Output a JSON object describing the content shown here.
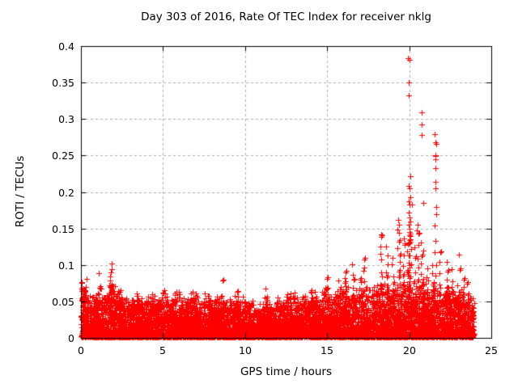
{
  "chart_data": {
    "type": "scatter",
    "title": "Day 303 of 2016, Rate Of TEC Index for receiver nklg",
    "xlabel": "GPS time / hours",
    "ylabel": "ROTI / TECUs",
    "xlim": [
      0,
      25
    ],
    "ylim": [
      0,
      0.4
    ],
    "xticks": [
      0,
      5,
      10,
      15,
      20,
      25
    ],
    "yticks": [
      0,
      0.05,
      0.1,
      0.15,
      0.2,
      0.25,
      0.3,
      0.35,
      0.4
    ],
    "xtick_labels": [
      "0",
      "5",
      "10",
      "15",
      "20",
      "25"
    ],
    "ytick_labels": [
      "0",
      "0.05",
      "0.1",
      "0.15",
      "0.2",
      "0.25",
      "0.3",
      "0.35",
      "0.4"
    ],
    "grid": true,
    "legend": "none",
    "marker": {
      "symbol": "+",
      "size": 7,
      "color": "#ff0000"
    },
    "colors": {
      "marker": "#ff0000",
      "grid": "#b0b0b0",
      "axis": "#000000",
      "background": "#ffffff",
      "text": "#000000"
    },
    "series_name": "ROTI",
    "baseline": {
      "comment": "dense noisy band of + markers, ~0.002-0.06 TECU, 0-24h",
      "seed": 303,
      "count": 9000,
      "x_range": [
        0.02,
        23.95
      ],
      "y_min": 0.0015,
      "exponent": 2.3,
      "envelope": [
        [
          0,
          0.068
        ],
        [
          0.3,
          0.072
        ],
        [
          0.6,
          0.052
        ],
        [
          0.9,
          0.058
        ],
        [
          1.2,
          0.062
        ],
        [
          1.5,
          0.05
        ],
        [
          1.85,
          0.075
        ],
        [
          2.2,
          0.058
        ],
        [
          2.6,
          0.048
        ],
        [
          3.0,
          0.052
        ],
        [
          3.4,
          0.056
        ],
        [
          3.8,
          0.047
        ],
        [
          4.3,
          0.057
        ],
        [
          4.7,
          0.05
        ],
        [
          5.0,
          0.06
        ],
        [
          5.4,
          0.053
        ],
        [
          5.9,
          0.065
        ],
        [
          6.3,
          0.05
        ],
        [
          6.9,
          0.062
        ],
        [
          7.3,
          0.048
        ],
        [
          7.6,
          0.058
        ],
        [
          8.0,
          0.048
        ],
        [
          8.4,
          0.054
        ],
        [
          8.9,
          0.046
        ],
        [
          9.3,
          0.053
        ],
        [
          9.7,
          0.058
        ],
        [
          10.1,
          0.046
        ],
        [
          10.5,
          0.05
        ],
        [
          10.9,
          0.042
        ],
        [
          11.3,
          0.052
        ],
        [
          11.7,
          0.04
        ],
        [
          12.1,
          0.05
        ],
        [
          12.5,
          0.056
        ],
        [
          12.9,
          0.058
        ],
        [
          13.3,
          0.048
        ],
        [
          13.7,
          0.053
        ],
        [
          14.1,
          0.06
        ],
        [
          14.5,
          0.05
        ],
        [
          14.9,
          0.062
        ],
        [
          15.3,
          0.052
        ],
        [
          15.7,
          0.06
        ],
        [
          16.1,
          0.065
        ],
        [
          16.5,
          0.06
        ],
        [
          17.0,
          0.062
        ],
        [
          17.5,
          0.058
        ],
        [
          18.0,
          0.065
        ],
        [
          18.5,
          0.068
        ],
        [
          19.0,
          0.062
        ],
        [
          19.5,
          0.068
        ],
        [
          20.0,
          0.075
        ],
        [
          20.4,
          0.068
        ],
        [
          20.8,
          0.072
        ],
        [
          21.2,
          0.062
        ],
        [
          21.6,
          0.068
        ],
        [
          22.0,
          0.06
        ],
        [
          22.4,
          0.065
        ],
        [
          22.8,
          0.058
        ],
        [
          23.2,
          0.062
        ],
        [
          23.6,
          0.055
        ],
        [
          23.95,
          0.05
        ]
      ]
    },
    "spike_columns": [
      [
        0.12,
        0.075,
        3
      ],
      [
        0.33,
        0.083,
        2
      ],
      [
        1.13,
        0.091,
        3
      ],
      [
        1.85,
        0.099,
        10
      ],
      [
        2.3,
        0.065,
        3
      ],
      [
        8.67,
        0.077,
        2
      ],
      [
        11.25,
        0.066,
        3
      ],
      [
        14.2,
        0.06,
        2
      ],
      [
        15.0,
        0.079,
        3
      ],
      [
        15.7,
        0.081,
        3
      ],
      [
        16.1,
        0.092,
        6
      ],
      [
        16.55,
        0.1,
        6
      ],
      [
        17.0,
        0.082,
        5
      ],
      [
        17.3,
        0.11,
        7
      ],
      [
        17.8,
        0.068,
        7
      ],
      [
        18.3,
        0.138,
        9
      ],
      [
        18.65,
        0.126,
        8
      ],
      [
        19.0,
        0.11,
        6
      ],
      [
        19.35,
        0.145,
        10
      ],
      [
        19.65,
        0.128,
        7
      ],
      [
        19.95,
        0.14,
        14
      ],
      [
        20.05,
        0.135,
        12
      ],
      [
        20.3,
        0.122,
        6
      ],
      [
        20.55,
        0.14,
        7
      ],
      [
        20.78,
        0.13,
        9
      ],
      [
        21.1,
        0.096,
        6
      ],
      [
        21.4,
        0.1,
        5
      ],
      [
        21.6,
        0.17,
        8
      ],
      [
        21.9,
        0.115,
        6
      ],
      [
        22.3,
        0.105,
        6
      ],
      [
        22.6,
        0.092,
        4
      ],
      [
        23.0,
        0.112,
        4
      ],
      [
        23.35,
        0.082,
        4
      ],
      [
        23.6,
        0.075,
        3
      ]
    ],
    "outliers": [
      [
        19.93,
        0.383
      ],
      [
        20.03,
        0.381
      ],
      [
        19.98,
        0.35
      ],
      [
        19.97,
        0.332
      ],
      [
        20.74,
        0.309
      ],
      [
        20.76,
        0.293
      ],
      [
        20.75,
        0.278
      ],
      [
        21.57,
        0.279
      ],
      [
        21.6,
        0.268
      ],
      [
        21.63,
        0.266
      ],
      [
        21.58,
        0.25
      ],
      [
        21.62,
        0.249
      ],
      [
        21.6,
        0.245
      ],
      [
        21.6,
        0.233
      ],
      [
        21.6,
        0.214
      ],
      [
        21.58,
        0.205
      ],
      [
        21.63,
        0.179
      ],
      [
        20.05,
        0.222
      ],
      [
        19.98,
        0.208
      ],
      [
        20.0,
        0.205
      ],
      [
        20.08,
        0.193
      ],
      [
        19.97,
        0.187
      ],
      [
        20.0,
        0.183
      ],
      [
        20.18,
        0.183
      ],
      [
        20.85,
        0.185
      ],
      [
        19.95,
        0.172
      ],
      [
        20.0,
        0.165
      ],
      [
        20.05,
        0.16
      ],
      [
        19.98,
        0.155
      ],
      [
        20.02,
        0.15
      ],
      [
        20.0,
        0.145
      ],
      [
        20.08,
        0.14
      ],
      [
        20.5,
        0.155
      ],
      [
        20.47,
        0.147
      ],
      [
        19.33,
        0.162
      ],
      [
        19.36,
        0.155
      ],
      [
        19.3,
        0.148
      ],
      [
        19.68,
        0.136
      ],
      [
        19.72,
        0.13
      ],
      [
        18.28,
        0.142
      ]
    ]
  },
  "layout_note": "single gnuplot-style figure, no interactive controls visible"
}
